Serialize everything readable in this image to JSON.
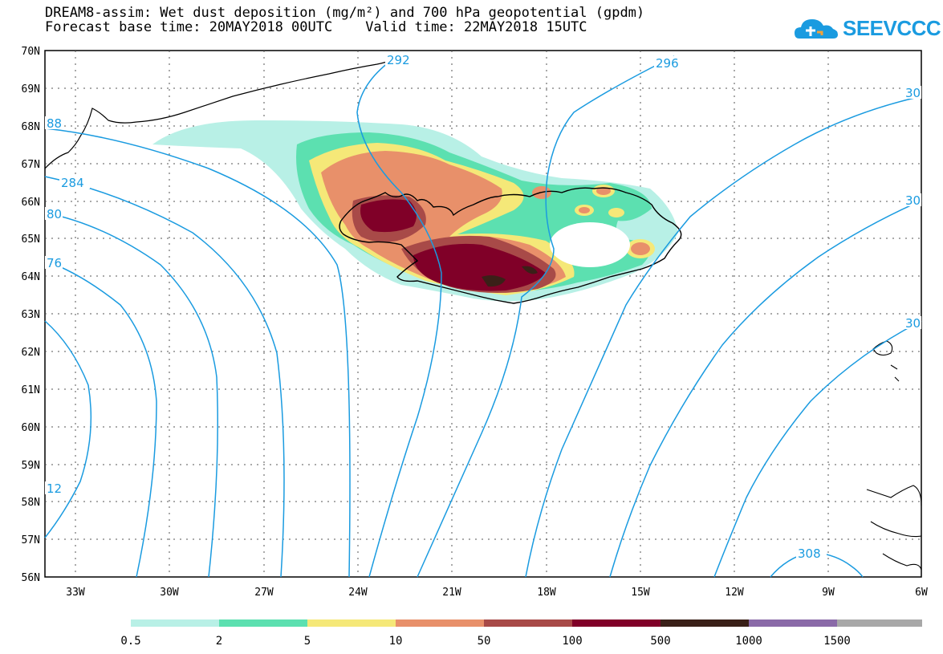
{
  "title": {
    "line1": "DREAM8-assim: Wet dust deposition (mg/m²) and 700 hPa geopotential (gpdm)",
    "line2_base": "Forecast base time: 20MAY2018 00UTC",
    "line2_valid": "Valid time: 22MAY2018 15UTC"
  },
  "logo": {
    "text": "SEEVCCC",
    "icon": "cloud-logo-icon",
    "color": "#1a9be0"
  },
  "map": {
    "lat_labels": [
      "70N",
      "69N",
      "68N",
      "67N",
      "66N",
      "65N",
      "64N",
      "63N",
      "62N",
      "61N",
      "60N",
      "59N",
      "58N",
      "57N",
      "56N"
    ],
    "lon_labels": [
      "33W",
      "30W",
      "27W",
      "24W",
      "21W",
      "18W",
      "15W",
      "12W",
      "9W",
      "6W"
    ],
    "lat_range": [
      56,
      70
    ],
    "lon_range": [
      -34.5,
      -6
    ],
    "gridlines": "dotted",
    "coastline_color": "#000000",
    "contour_color": "#1a9be0",
    "contour_labels": [
      "88",
      "284",
      "80",
      "76",
      "12",
      "292",
      "296",
      "30",
      "30",
      "30",
      "308"
    ]
  },
  "legend": {
    "colors": [
      "#b8f0e6",
      "#5ce0b0",
      "#f5e878",
      "#e8906a",
      "#a84a48",
      "#800028",
      "#3a2018",
      "#8a6aa8",
      "#a8a8a8"
    ],
    "labels": [
      "0.5",
      "2",
      "5",
      "10",
      "50",
      "100",
      "500",
      "1000",
      "1500"
    ]
  }
}
